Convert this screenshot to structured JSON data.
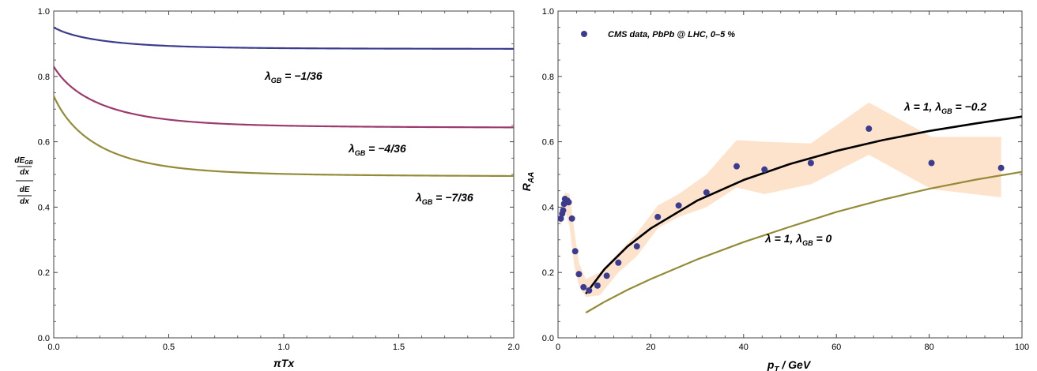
{
  "chart_data": [
    {
      "type": "line",
      "xlabel": "πTx",
      "ylabel": {
        "num_main": "dE",
        "num_sub": "GB",
        "num_den": "dx",
        "den_num": "dE",
        "den_den": "dx"
      },
      "xlim": [
        0,
        2
      ],
      "ylim": [
        0,
        1
      ],
      "xticks": [
        "0.0",
        "0.5",
        "1.0",
        "1.5",
        "2.0"
      ],
      "yticks": [
        "0.0",
        "0.2",
        "0.4",
        "0.6",
        "0.8",
        "1.0"
      ],
      "series": [
        {
          "label_sym": "λ",
          "label_sub": "GB",
          "label_val": " = −1/36",
          "color": "#3b3b8f",
          "start": 0.95,
          "end": 0.883,
          "decay": 4.0
        },
        {
          "label_sym": "λ",
          "label_sub": "GB",
          "label_val": " = −4/36",
          "color": "#9c3a6e",
          "start": 0.83,
          "end": 0.64,
          "decay": 4.2
        },
        {
          "label_sym": "λ",
          "label_sub": "GB",
          "label_val": " = −7/36",
          "color": "#948b38",
          "start": 0.74,
          "end": 0.49,
          "decay": 4.5
        }
      ]
    },
    {
      "type": "scatter",
      "xlabel_main": "p",
      "xlabel_sub": "T",
      "xlabel_rest": " / GeV",
      "ylabel_main": "R",
      "ylabel_sub": "AA",
      "xlim": [
        0,
        100
      ],
      "ylim": [
        0,
        1
      ],
      "xticks": [
        "0",
        "20",
        "40",
        "60",
        "80",
        "100"
      ],
      "yticks": [
        "0.0",
        "0.2",
        "0.4",
        "0.6",
        "0.8",
        "1.0"
      ],
      "legend": "CMS data, PbPb @ LHC, 0–5 %",
      "legend_position": "top-left",
      "marker_color": "#3b3b8f",
      "band_color": "#fde3cc",
      "points": [
        [
          0.6,
          0.365
        ],
        [
          0.9,
          0.38
        ],
        [
          1.1,
          0.39
        ],
        [
          1.3,
          0.41
        ],
        [
          1.5,
          0.425
        ],
        [
          1.7,
          0.415
        ],
        [
          2.0,
          0.42
        ],
        [
          2.3,
          0.415
        ],
        [
          3.0,
          0.365
        ],
        [
          3.7,
          0.265
        ],
        [
          4.5,
          0.195
        ],
        [
          5.5,
          0.155
        ],
        [
          6.7,
          0.145
        ],
        [
          8.5,
          0.16
        ],
        [
          10.5,
          0.19
        ],
        [
          13.0,
          0.23
        ],
        [
          17.0,
          0.28
        ],
        [
          21.5,
          0.37
        ],
        [
          26.0,
          0.405
        ],
        [
          32.0,
          0.445
        ],
        [
          38.5,
          0.525
        ],
        [
          44.5,
          0.515
        ],
        [
          54.5,
          0.535
        ],
        [
          67.0,
          0.64
        ],
        [
          80.5,
          0.535
        ],
        [
          95.5,
          0.52
        ]
      ],
      "band_upper": [
        [
          0.5,
          0.39
        ],
        [
          1.5,
          0.445
        ],
        [
          2.5,
          0.44
        ],
        [
          3.5,
          0.33
        ],
        [
          4.5,
          0.23
        ],
        [
          6.0,
          0.18
        ],
        [
          9.0,
          0.2
        ],
        [
          13.0,
          0.26
        ],
        [
          17.0,
          0.32
        ],
        [
          21.5,
          0.405
        ],
        [
          26.0,
          0.44
        ],
        [
          32.0,
          0.5
        ],
        [
          38.5,
          0.605
        ],
        [
          44.5,
          0.6
        ],
        [
          54.5,
          0.595
        ],
        [
          67.0,
          0.72
        ],
        [
          80.5,
          0.615
        ],
        [
          95.5,
          0.615
        ]
      ],
      "band_lower": [
        [
          95.5,
          0.43
        ],
        [
          80.5,
          0.455
        ],
        [
          67.0,
          0.56
        ],
        [
          54.5,
          0.47
        ],
        [
          44.5,
          0.44
        ],
        [
          38.5,
          0.46
        ],
        [
          32.0,
          0.4
        ],
        [
          26.0,
          0.37
        ],
        [
          21.5,
          0.335
        ],
        [
          17.0,
          0.25
        ],
        [
          13.0,
          0.2
        ],
        [
          9.0,
          0.13
        ],
        [
          6.0,
          0.125
        ],
        [
          4.5,
          0.16
        ],
        [
          3.5,
          0.22
        ],
        [
          2.5,
          0.34
        ],
        [
          1.5,
          0.39
        ],
        [
          0.5,
          0.34
        ]
      ],
      "curves": [
        {
          "label_pre": "λ = 1, λ",
          "label_sub": "GB",
          "label_val": " = −0.2",
          "color": "#000000",
          "points": [
            [
              6,
              0.135
            ],
            [
              10,
              0.21
            ],
            [
              15,
              0.28
            ],
            [
              20,
              0.335
            ],
            [
              30,
              0.42
            ],
            [
              40,
              0.483
            ],
            [
              50,
              0.532
            ],
            [
              60,
              0.572
            ],
            [
              70,
              0.605
            ],
            [
              80,
              0.633
            ],
            [
              90,
              0.656
            ],
            [
              100,
              0.677
            ]
          ]
        },
        {
          "label_pre": "λ = 1, λ",
          "label_sub": "GB",
          "label_val": " = 0",
          "color": "#948b38",
          "points": [
            [
              6,
              0.077
            ],
            [
              10,
              0.11
            ],
            [
              15,
              0.147
            ],
            [
              20,
              0.18
            ],
            [
              30,
              0.24
            ],
            [
              40,
              0.293
            ],
            [
              50,
              0.34
            ],
            [
              60,
              0.385
            ],
            [
              70,
              0.423
            ],
            [
              80,
              0.456
            ],
            [
              90,
              0.484
            ],
            [
              100,
              0.508
            ]
          ]
        }
      ]
    }
  ]
}
